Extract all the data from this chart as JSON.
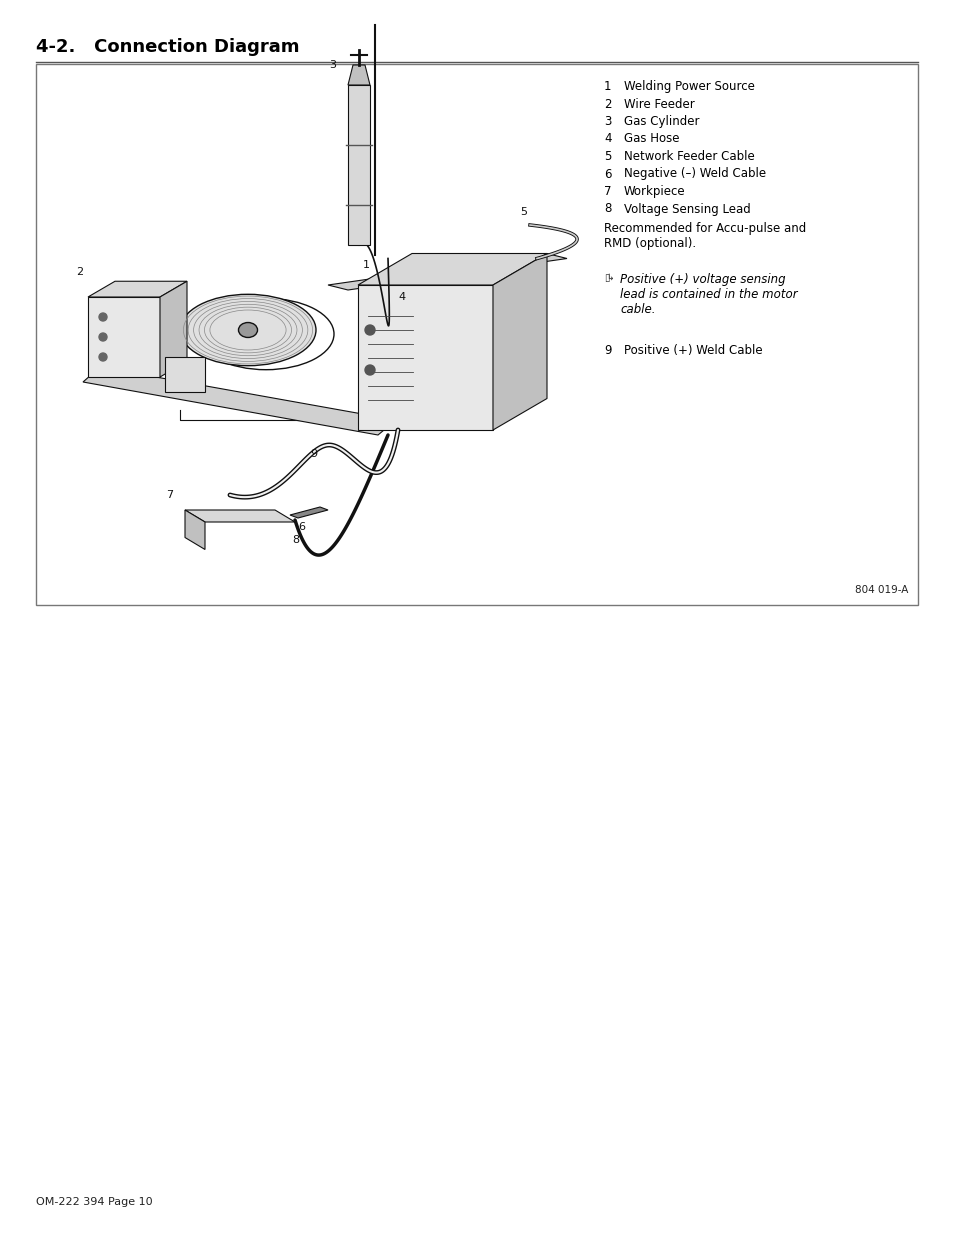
{
  "title": "4-2.   Connection Diagram",
  "page_label": "OM-222 394 Page 10",
  "diagram_ref": "804 019-A",
  "bg_color": "#ffffff",
  "legend_items": [
    {
      "num": "1",
      "text": "Welding Power Source"
    },
    {
      "num": "2",
      "text": "Wire Feeder"
    },
    {
      "num": "3",
      "text": "Gas Cylinder"
    },
    {
      "num": "4",
      "text": "Gas Hose"
    },
    {
      "num": "5",
      "text": "Network Feeder Cable"
    },
    {
      "num": "6",
      "text": "Negative (–) Weld Cable"
    },
    {
      "num": "7",
      "text": "Workpiece"
    },
    {
      "num": "8",
      "text": "Voltage Sensing Lead"
    }
  ],
  "recommended_text": "Recommended for Accu-pulse and\nRMD (optional).",
  "note_symbol": "▯",
  "note_text": "Positive (+) voltage sensing\nlead is contained in the motor\ncable.",
  "item9": {
    "num": "9",
    "text": "Positive (+) Weld Cable"
  },
  "title_fontsize": 13,
  "legend_fontsize": 8.5,
  "note_fontsize": 8.5,
  "page_fontsize": 8,
  "line_color": "#111111",
  "fill_light": "#e8e8e8",
  "fill_mid": "#cccccc",
  "fill_dark": "#aaaaaa"
}
